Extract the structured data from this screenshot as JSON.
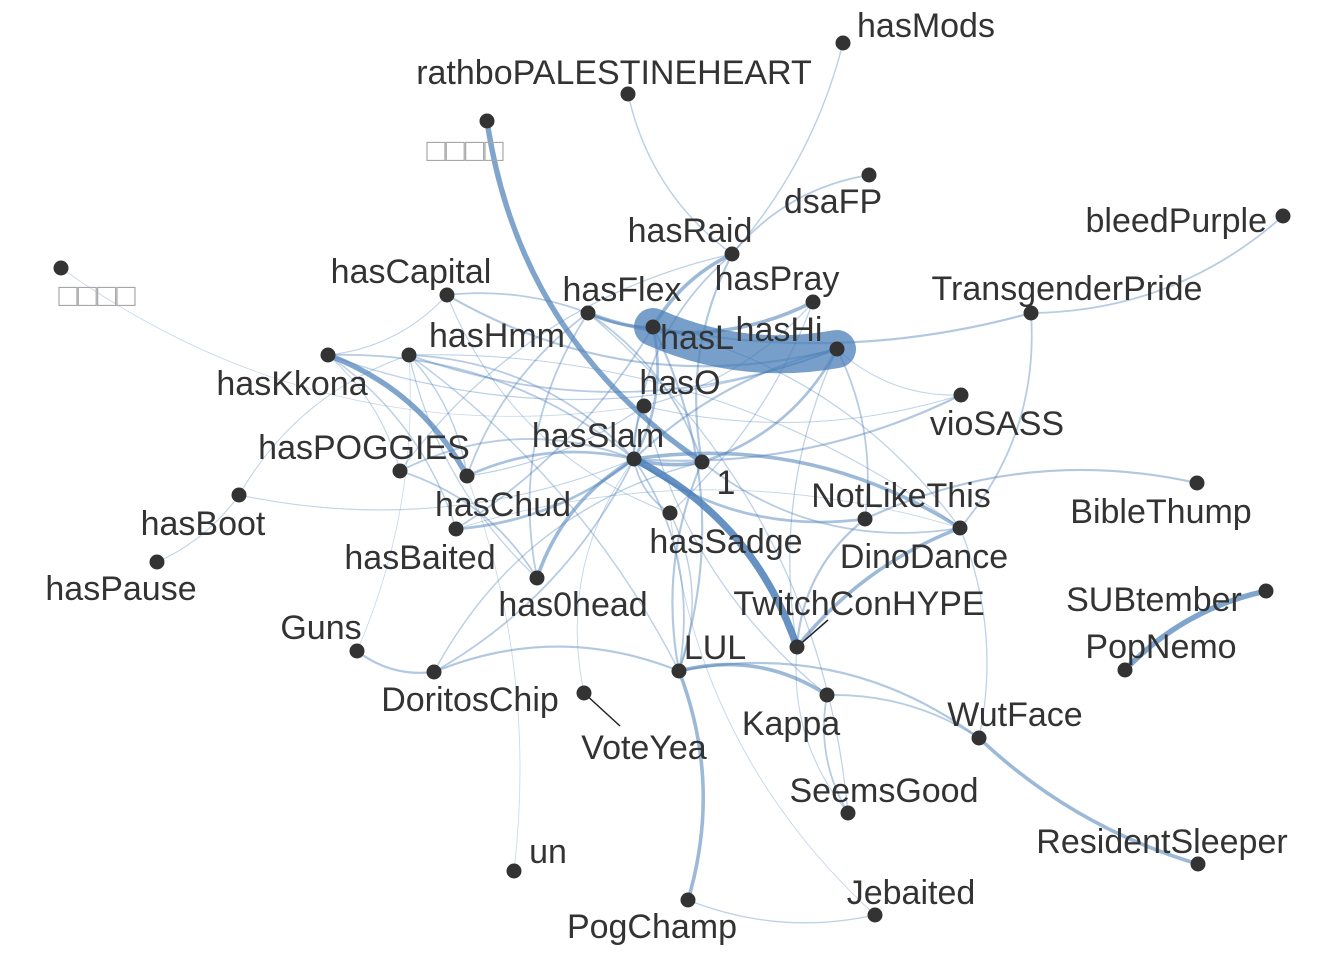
{
  "graph": {
    "edge_color": "#4a7fb8",
    "node_color": "#333333",
    "faded_label_color": "#a8a8a8",
    "nodes": [
      {
        "id": "hasMods",
        "label": "hasMods"
      },
      {
        "id": "rathbo",
        "label": "rathboPALESTINEHEART"
      },
      {
        "id": "glyph1",
        "label": "□□□□",
        "faded": true
      },
      {
        "id": "dsaFP",
        "label": "dsaFP"
      },
      {
        "id": "bleedPurple",
        "label": "bleedPurple"
      },
      {
        "id": "hasRaid",
        "label": "hasRaid"
      },
      {
        "id": "glyph2",
        "label": "□□□□",
        "faded": true
      },
      {
        "id": "hasCapital",
        "label": "hasCapital"
      },
      {
        "id": "hasPray",
        "label": "hasPray"
      },
      {
        "id": "TransgenderPride",
        "label": "TransgenderPride"
      },
      {
        "id": "hasFlex",
        "label": "hasFlex"
      },
      {
        "id": "hasL",
        "label": "hasL"
      },
      {
        "id": "hasHi",
        "label": "hasHi"
      },
      {
        "id": "hasHmm",
        "label": "hasHmm"
      },
      {
        "id": "hasKkona",
        "label": "hasKkona"
      },
      {
        "id": "hasO",
        "label": "hasO"
      },
      {
        "id": "vioSASS",
        "label": "vioSASS"
      },
      {
        "id": "hasSlam",
        "label": "hasSlam"
      },
      {
        "id": "hasPOGGIES",
        "label": "hasPOGGIES"
      },
      {
        "id": "one",
        "label": "1"
      },
      {
        "id": "NotLikeThis",
        "label": "NotLikeThis"
      },
      {
        "id": "BibleThump",
        "label": "BibleThump"
      },
      {
        "id": "hasBoot",
        "label": "hasBoot"
      },
      {
        "id": "hasChud",
        "label": "hasChud"
      },
      {
        "id": "hasSadge",
        "label": "hasSadge"
      },
      {
        "id": "DinoDance",
        "label": "DinoDance"
      },
      {
        "id": "hasBaited",
        "label": "hasBaited"
      },
      {
        "id": "hasPause",
        "label": "hasPause"
      },
      {
        "id": "SUBtember",
        "label": "SUBtember"
      },
      {
        "id": "has0head",
        "label": "has0head"
      },
      {
        "id": "TwitchConHYPE",
        "label": "TwitchConHYPE"
      },
      {
        "id": "PopNemo",
        "label": "PopNemo"
      },
      {
        "id": "Guns",
        "label": "Guns"
      },
      {
        "id": "LUL",
        "label": "LUL"
      },
      {
        "id": "DoritosChip",
        "label": "DoritosChip"
      },
      {
        "id": "WutFace",
        "label": "WutFace"
      },
      {
        "id": "Kappa",
        "label": "Kappa"
      },
      {
        "id": "VoteYea",
        "label": "VoteYea"
      },
      {
        "id": "SeemsGood",
        "label": "SeemsGood"
      },
      {
        "id": "ResidentSleeper",
        "label": "ResidentSleeper"
      },
      {
        "id": "un",
        "label": "un"
      },
      {
        "id": "Jebaited",
        "label": "Jebaited"
      },
      {
        "id": "PogChamp",
        "label": "PogChamp"
      }
    ],
    "edges": [
      {
        "source": "hasL",
        "target": "hasHi",
        "weight": 10
      },
      {
        "source": "glyph1",
        "target": "one",
        "weight": 3
      },
      {
        "source": "hasKkona",
        "target": "hasChud",
        "weight": 3
      },
      {
        "source": "hasSlam",
        "target": "TwitchConHYPE",
        "weight": 4
      },
      {
        "source": "hasSlam",
        "target": "DinoDance",
        "weight": 2
      },
      {
        "source": "SUBtember",
        "target": "PopNemo",
        "weight": 3
      },
      {
        "source": "WutFace",
        "target": "ResidentSleeper",
        "weight": 2
      },
      {
        "source": "LUL",
        "target": "PogChamp",
        "weight": 2
      },
      {
        "source": "LUL",
        "target": "Kappa",
        "weight": 2
      },
      {
        "source": "TwitchConHYPE",
        "target": "DinoDance",
        "weight": 2
      },
      {
        "source": "hasSlam",
        "target": "has0head",
        "weight": 2
      },
      {
        "source": "hasFlex",
        "target": "hasPray",
        "weight": 2
      },
      {
        "source": "hasL",
        "target": "hasRaid",
        "weight": 2
      },
      {
        "source": "hasSlam",
        "target": "one",
        "weight": 2
      },
      {
        "source": "hasSlam",
        "target": "hasChud",
        "weight": 1.5
      },
      {
        "source": "hasSlam",
        "target": "hasBaited",
        "weight": 1.5
      },
      {
        "source": "hasSlam",
        "target": "NotLikeThis",
        "weight": 1.5
      },
      {
        "source": "hasSlam",
        "target": "hasL",
        "weight": 1.5
      },
      {
        "source": "hasSlam",
        "target": "vioSASS",
        "weight": 1.2
      },
      {
        "source": "hasSlam",
        "target": "hasHi",
        "weight": 1.2
      },
      {
        "source": "hasSlam",
        "target": "hasHmm",
        "weight": 1
      },
      {
        "source": "hasSlam",
        "target": "hasPOGGIES",
        "weight": 1
      },
      {
        "source": "hasSlam",
        "target": "hasKkona",
        "weight": 1
      },
      {
        "source": "hasSlam",
        "target": "hasSadge",
        "weight": 1
      },
      {
        "source": "hasSlam",
        "target": "hasO",
        "weight": 1
      },
      {
        "source": "hasSlam",
        "target": "LUL",
        "weight": 1
      },
      {
        "source": "one",
        "target": "hasHi",
        "weight": 1.5
      },
      {
        "source": "one",
        "target": "hasRaid",
        "weight": 1.2
      },
      {
        "source": "one",
        "target": "LUL",
        "weight": 1.2
      },
      {
        "source": "one",
        "target": "hasFlex",
        "weight": 1
      },
      {
        "source": "one",
        "target": "DinoDance",
        "weight": 1
      },
      {
        "source": "hasFlex",
        "target": "hasL",
        "weight": 1.5
      },
      {
        "source": "hasFlex",
        "target": "hasCapital",
        "weight": 1
      },
      {
        "source": "hasFlex",
        "target": "hasChud",
        "weight": 1
      },
      {
        "source": "hasFlex",
        "target": "has0head",
        "weight": 1
      },
      {
        "source": "hasCapital",
        "target": "hasHi",
        "weight": 1.2
      },
      {
        "source": "hasL",
        "target": "TransgenderPride",
        "weight": 1.2
      },
      {
        "source": "hasRaid",
        "target": "dsaFP",
        "weight": 1
      },
      {
        "source": "hasRaid",
        "target": "rathbo",
        "weight": 0.8
      },
      {
        "source": "hasRaid",
        "target": "hasMods",
        "weight": 0.8
      },
      {
        "source": "hasRaid",
        "target": "hasSlam",
        "weight": 1
      },
      {
        "source": "TransgenderPride",
        "target": "bleedPurple",
        "weight": 1
      },
      {
        "source": "TransgenderPride",
        "target": "DinoDance",
        "weight": 1
      },
      {
        "source": "NotLikeThis",
        "target": "BibleThump",
        "weight": 1.2
      },
      {
        "source": "NotLikeThis",
        "target": "hasHi",
        "weight": 1
      },
      {
        "source": "NotLikeThis",
        "target": "TwitchConHYPE",
        "weight": 1.2
      },
      {
        "source": "LUL",
        "target": "DoritosChip",
        "weight": 1.2
      },
      {
        "source": "LUL",
        "target": "WutFace",
        "weight": 1.2
      },
      {
        "source": "LUL",
        "target": "hasL",
        "weight": 1.2
      },
      {
        "source": "LUL",
        "target": "hasSadge",
        "weight": 0.8
      },
      {
        "source": "LUL",
        "target": "hasHmm",
        "weight": 0.8
      },
      {
        "source": "Guns",
        "target": "DoritosChip",
        "weight": 1.2
      },
      {
        "source": "DoritosChip",
        "target": "hasSlam",
        "weight": 1
      },
      {
        "source": "DoritosChip",
        "target": "one",
        "weight": 0.8
      },
      {
        "source": "Kappa",
        "target": "SeemsGood",
        "weight": 1
      },
      {
        "source": "Kappa",
        "target": "WutFace",
        "weight": 1
      },
      {
        "source": "Kappa",
        "target": "hasO",
        "weight": 0.7
      },
      {
        "source": "SeemsGood",
        "target": "hasFlex",
        "weight": 0.7
      },
      {
        "source": "PogChamp",
        "target": "Jebaited",
        "weight": 0.7
      },
      {
        "source": "Jebaited",
        "target": "hasSadge",
        "weight": 0.5
      },
      {
        "source": "un",
        "target": "hasChud",
        "weight": 0.4
      },
      {
        "source": "glyph2",
        "target": "hasO",
        "weight": 0.4
      },
      {
        "source": "hasBoot",
        "target": "hasPause",
        "weight": 0.6
      },
      {
        "source": "hasBoot",
        "target": "hasHmm",
        "weight": 0.6
      },
      {
        "source": "hasBoot",
        "target": "hasSlam",
        "weight": 0.6
      },
      {
        "source": "hasPOGGIES",
        "target": "has0head",
        "weight": 1
      },
      {
        "source": "hasPOGGIES",
        "target": "hasRaid",
        "weight": 0.7
      },
      {
        "source": "hasBaited",
        "target": "hasL",
        "weight": 1
      },
      {
        "source": "hasBaited",
        "target": "hasKkona",
        "weight": 0.8
      },
      {
        "source": "hasHmm",
        "target": "hasHi",
        "weight": 1
      },
      {
        "source": "hasHmm",
        "target": "hasChud",
        "weight": 0.8
      },
      {
        "source": "hasO",
        "target": "hasPray",
        "weight": 0.7
      },
      {
        "source": "hasO",
        "target": "vioSASS",
        "weight": 0.6
      },
      {
        "source": "hasPray",
        "target": "hasSadge",
        "weight": 0.7
      },
      {
        "source": "hasHi",
        "target": "vioSASS",
        "weight": 0.6
      },
      {
        "source": "hasKkona",
        "target": "hasHi",
        "weight": 0.7
      },
      {
        "source": "hasKkona",
        "target": "hasPOGGIES",
        "weight": 0.6
      },
      {
        "source": "has0head",
        "target": "hasHmm",
        "weight": 0.7
      },
      {
        "source": "hasChud",
        "target": "hasO",
        "weight": 0.7
      },
      {
        "source": "DinoDance",
        "target": "WutFace",
        "weight": 0.7
      },
      {
        "source": "DinoDance",
        "target": "hasL",
        "weight": 0.7
      },
      {
        "source": "DinoDance",
        "target": "hasHmm",
        "weight": 0.6
      },
      {
        "source": "TwitchConHYPE",
        "target": "hasHi",
        "weight": 0.7
      },
      {
        "source": "TwitchConHYPE",
        "target": "SeemsGood",
        "weight": 0.6
      },
      {
        "source": "hasSadge",
        "target": "hasCapital",
        "weight": 0.6
      },
      {
        "source": "hasBaited",
        "target": "DinoDance",
        "weight": 0.5
      },
      {
        "source": "hasCapital",
        "target": "hasKkona",
        "weight": 0.6
      },
      {
        "source": "Guns",
        "target": "hasHmm",
        "weight": 0.4
      },
      {
        "source": "VoteYea",
        "target": "hasSlam",
        "weight": 0.5
      }
    ]
  }
}
